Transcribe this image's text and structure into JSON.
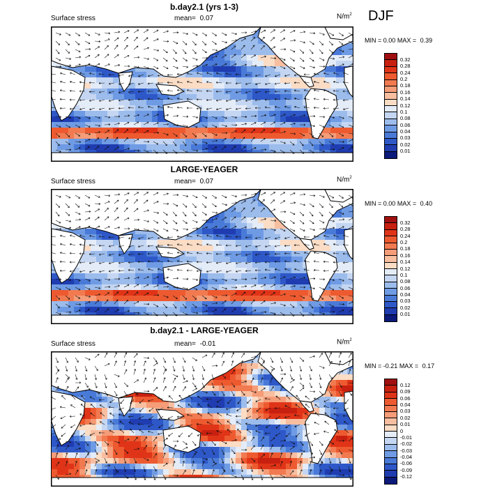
{
  "season": "DJF",
  "colors": {
    "land": "#ffffff",
    "coast": "#000000",
    "vector": "#111111"
  },
  "panels": [
    {
      "title": "b.day2.1 (yrs 1-3)",
      "variable": "Surface stress",
      "mean_label": "mean=",
      "mean_value": "0.07",
      "units": "N/m",
      "units_exp": "2",
      "min_label": "MIN =",
      "min_value": "0.00",
      "max_label": "MAX =",
      "max_value": "0.39",
      "colorbar_labels": [
        "0.32",
        "0.28",
        "0.24",
        "0.2",
        "0.18",
        "0.16",
        "0.14",
        "0.12",
        "0.1",
        "0.08",
        "0.06",
        "0.04",
        "0.03",
        "0.02",
        "0.01"
      ],
      "colorbar_colors": [
        "#a01010",
        "#c82010",
        "#e03418",
        "#ee5a30",
        "#f27a50",
        "#f59c78",
        "#f8bea0",
        "#fbdcc4",
        "#e4ecf8",
        "#c4d6f2",
        "#9cbcec",
        "#6f9be4",
        "#4a7ad8",
        "#2e58c8",
        "#1f3cb0",
        "#0c1a7a"
      ]
    },
    {
      "title": "LARGE-YEAGER",
      "variable": "Surface stress",
      "mean_label": "mean=",
      "mean_value": "0.07",
      "units": "N/m",
      "units_exp": "2",
      "min_label": "MIN =",
      "min_value": "0.00",
      "max_label": "MAX =",
      "max_value": "0.40",
      "colorbar_labels": [
        "0.32",
        "0.28",
        "0.24",
        "0.2",
        "0.18",
        "0.16",
        "0.14",
        "0.12",
        "0.1",
        "0.08",
        "0.06",
        "0.04",
        "0.03",
        "0.02",
        "0.01"
      ],
      "colorbar_colors": [
        "#a01010",
        "#c82010",
        "#e03418",
        "#ee5a30",
        "#f27a50",
        "#f59c78",
        "#f8bea0",
        "#fbdcc4",
        "#e4ecf8",
        "#c4d6f2",
        "#9cbcec",
        "#6f9be4",
        "#4a7ad8",
        "#2e58c8",
        "#1f3cb0",
        "#0c1a7a"
      ]
    },
    {
      "title": "b.day2.1 - LARGE-YEAGER",
      "variable": "Surface stress",
      "mean_label": "mean=",
      "mean_value": "-0.01",
      "units": "N/m",
      "units_exp": "2",
      "min_label": "MIN =",
      "min_value": "-0.21",
      "max_label": "MAX =",
      "max_value": "0.17",
      "colorbar_labels": [
        "0.12",
        "0.09",
        "0.06",
        "0.04",
        "0.03",
        "0.02",
        "0.01",
        "0",
        "-0.01",
        "-0.02",
        "-0.03",
        "-0.04",
        "-0.06",
        "-0.09",
        "-0.12"
      ],
      "colorbar_colors": [
        "#a01010",
        "#c82010",
        "#e03418",
        "#ee5a30",
        "#f27a50",
        "#f59c78",
        "#f8bea0",
        "#fbdcc4",
        "#e4ecf8",
        "#c4d6f2",
        "#9cbcec",
        "#6f9be4",
        "#4a7ad8",
        "#2e58c8",
        "#1f3cb0",
        "#0c1a7a"
      ]
    }
  ],
  "chart_data": [
    {
      "type": "heatmap",
      "title": "b.day2.1 (yrs 1-3)",
      "variable": "Surface stress",
      "units": "N/m2",
      "season": "DJF",
      "mean": 0.07,
      "min": 0.0,
      "max": 0.39,
      "color_levels": [
        0.01,
        0.02,
        0.03,
        0.04,
        0.06,
        0.08,
        0.1,
        0.12,
        0.14,
        0.16,
        0.18,
        0.2,
        0.24,
        0.28,
        0.32
      ]
    },
    {
      "type": "heatmap",
      "title": "LARGE-YEAGER",
      "variable": "Surface stress",
      "units": "N/m2",
      "season": "DJF",
      "mean": 0.07,
      "min": 0.0,
      "max": 0.4,
      "color_levels": [
        0.01,
        0.02,
        0.03,
        0.04,
        0.06,
        0.08,
        0.1,
        0.12,
        0.14,
        0.16,
        0.18,
        0.2,
        0.24,
        0.28,
        0.32
      ]
    },
    {
      "type": "heatmap",
      "title": "b.day2.1 - LARGE-YEAGER",
      "variable": "Surface stress",
      "units": "N/m2",
      "season": "DJF",
      "mean": -0.01,
      "min": -0.21,
      "max": 0.17,
      "color_levels": [
        -0.12,
        -0.09,
        -0.06,
        -0.04,
        -0.03,
        -0.02,
        -0.01,
        0,
        0.01,
        0.02,
        0.03,
        0.04,
        0.06,
        0.09,
        0.12
      ]
    }
  ]
}
